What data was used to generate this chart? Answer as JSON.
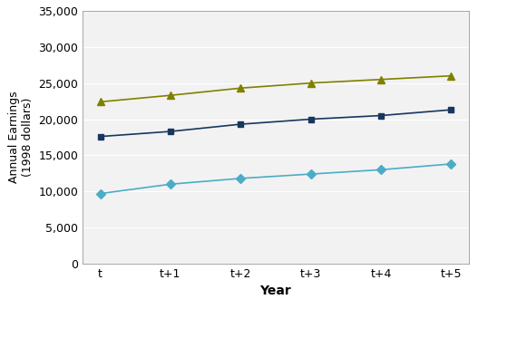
{
  "x_labels": [
    "t",
    "t+1",
    "t+2",
    "t+3",
    "t+4",
    "t+5"
  ],
  "x_values": [
    0,
    1,
    2,
    3,
    4,
    5
  ],
  "series": {
    "Low-Income Single Mothers": {
      "values": [
        9700,
        11000,
        11800,
        12400,
        13000,
        13800
      ],
      "color": "#4bacc6",
      "marker": "D",
      "markersize": 5,
      "linewidth": 1.2
    },
    "All Single Mothers": {
      "values": [
        17600,
        18300,
        19300,
        20000,
        20500,
        21300
      ],
      "color": "#17375e",
      "marker": "s",
      "markersize": 5,
      "linewidth": 1.2
    },
    "All Women": {
      "values": [
        22400,
        23300,
        24300,
        25000,
        25500,
        26000
      ],
      "color": "#808000",
      "marker": "^",
      "markersize": 6,
      "linewidth": 1.2
    }
  },
  "xlabel": "Year",
  "ylabel": "Annual Earnings\n(1998 dollars)",
  "ylim": [
    0,
    35000
  ],
  "yticks": [
    0,
    5000,
    10000,
    15000,
    20000,
    25000,
    30000,
    35000
  ],
  "background_color": "#ffffff",
  "plot_bg_color": "#f2f2f2",
  "grid_color": "#ffffff",
  "tick_fontsize": 9,
  "label_fontsize": 10,
  "legend_fontsize": 9
}
